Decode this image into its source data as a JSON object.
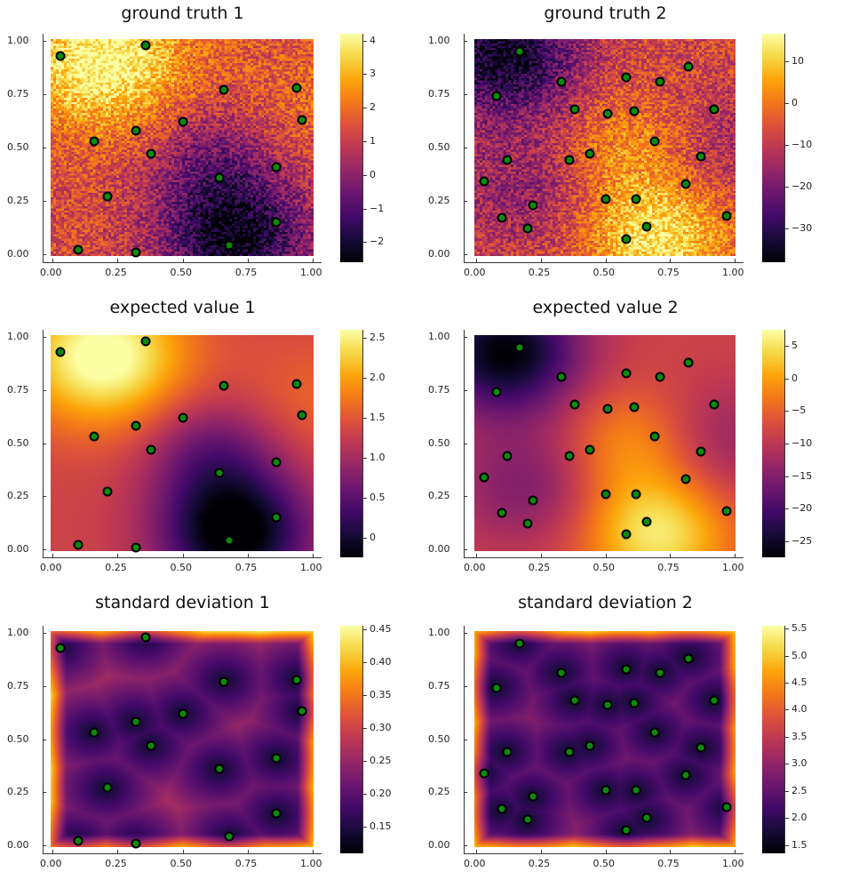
{
  "chart_data": [
    {
      "type": "heatmap",
      "title": "ground truth 1",
      "field": "gt1",
      "xlim": [
        0,
        1
      ],
      "ylim": [
        0,
        1
      ],
      "xticks": [
        "0.00",
        "0.25",
        "0.50",
        "0.75",
        "1.00"
      ],
      "yticks": [
        "0.00",
        "0.25",
        "0.50",
        "0.75",
        "1.00"
      ],
      "clim": [
        -2.6,
        4.2
      ],
      "cticks": [
        -2,
        -1,
        0,
        1,
        2,
        3,
        4
      ],
      "ctick_labels": [
        "−2",
        "−1",
        "0",
        "1",
        "2",
        "3",
        "4"
      ],
      "points": "set1"
    },
    {
      "type": "heatmap",
      "title": "ground truth 2",
      "field": "gt2",
      "xlim": [
        0,
        1
      ],
      "ylim": [
        0,
        1
      ],
      "xticks": [
        "0.00",
        "0.25",
        "0.50",
        "0.75",
        "1.00"
      ],
      "yticks": [
        "0.00",
        "0.25",
        "0.50",
        "0.75",
        "1.00"
      ],
      "clim": [
        -38,
        16.5
      ],
      "cticks": [
        -30,
        -20,
        -10,
        0,
        10
      ],
      "ctick_labels": [
        "−30",
        "−20",
        "−10",
        "0",
        "10"
      ],
      "points": "set2"
    },
    {
      "type": "heatmap",
      "title": "expected value 1",
      "field": "ev1",
      "xlim": [
        0,
        1
      ],
      "ylim": [
        0,
        1
      ],
      "xticks": [
        "0.00",
        "0.25",
        "0.50",
        "0.75",
        "1.00"
      ],
      "yticks": [
        "0.00",
        "0.25",
        "0.50",
        "0.75",
        "1.00"
      ],
      "clim": [
        -0.25,
        2.6
      ],
      "cticks": [
        0,
        0.5,
        1,
        1.5,
        2,
        2.5
      ],
      "ctick_labels": [
        "0",
        "0.5",
        "1.0",
        "1.5",
        "2.0",
        "2.5"
      ],
      "points": "set1"
    },
    {
      "type": "heatmap",
      "title": "expected value 2",
      "field": "ev2",
      "xlim": [
        0,
        1
      ],
      "ylim": [
        0,
        1
      ],
      "xticks": [
        "0.00",
        "0.25",
        "0.50",
        "0.75",
        "1.00"
      ],
      "yticks": [
        "0.00",
        "0.25",
        "0.50",
        "0.75",
        "1.00"
      ],
      "clim": [
        -27.5,
        7.5
      ],
      "cticks": [
        -25,
        -20,
        -15,
        -10,
        -5,
        0,
        5
      ],
      "ctick_labels": [
        "−25",
        "−20",
        "−15",
        "−10",
        "−5",
        "0",
        "5"
      ],
      "points": "set2"
    },
    {
      "type": "heatmap",
      "title": "standard deviation 1",
      "field": "sd1",
      "xlim": [
        0,
        1
      ],
      "ylim": [
        0,
        1
      ],
      "xticks": [
        "0.00",
        "0.25",
        "0.50",
        "0.75",
        "1.00"
      ],
      "yticks": [
        "0.00",
        "0.25",
        "0.50",
        "0.75",
        "1.00"
      ],
      "clim": [
        0.11,
        0.455
      ],
      "cticks": [
        0.15,
        0.2,
        0.25,
        0.3,
        0.35,
        0.4,
        0.45
      ],
      "ctick_labels": [
        "0.15",
        "0.20",
        "0.25",
        "0.30",
        "0.35",
        "0.40",
        "0.45"
      ],
      "points": "set1"
    },
    {
      "type": "heatmap",
      "title": "standard deviation 2",
      "field": "sd2",
      "xlim": [
        0,
        1
      ],
      "ylim": [
        0,
        1
      ],
      "xticks": [
        "0.00",
        "0.25",
        "0.50",
        "0.75",
        "1.00"
      ],
      "yticks": [
        "0.00",
        "0.25",
        "0.50",
        "0.75",
        "1.00"
      ],
      "clim": [
        1.35,
        5.55
      ],
      "cticks": [
        1.5,
        2,
        2.5,
        3,
        3.5,
        4,
        4.5,
        5,
        5.5
      ],
      "ctick_labels": [
        "1.5",
        "2.0",
        "2.5",
        "3.0",
        "3.5",
        "4.0",
        "4.5",
        "5.0",
        "5.5"
      ],
      "points": "set2"
    }
  ],
  "points": {
    "set1": [
      [
        0.03,
        0.93
      ],
      [
        0.36,
        0.98
      ],
      [
        0.66,
        0.77
      ],
      [
        0.94,
        0.78
      ],
      [
        0.96,
        0.63
      ],
      [
        0.5,
        0.62
      ],
      [
        0.32,
        0.58
      ],
      [
        0.16,
        0.53
      ],
      [
        0.38,
        0.47
      ],
      [
        0.86,
        0.41
      ],
      [
        0.64,
        0.36
      ],
      [
        0.21,
        0.27
      ],
      [
        0.86,
        0.15
      ],
      [
        0.68,
        0.04
      ],
      [
        0.1,
        0.02
      ],
      [
        0.32,
        0.01
      ]
    ],
    "set2": [
      [
        0.17,
        0.95
      ],
      [
        0.08,
        0.74
      ],
      [
        0.33,
        0.81
      ],
      [
        0.58,
        0.83
      ],
      [
        0.71,
        0.81
      ],
      [
        0.82,
        0.88
      ],
      [
        0.38,
        0.68
      ],
      [
        0.51,
        0.66
      ],
      [
        0.61,
        0.67
      ],
      [
        0.92,
        0.68
      ],
      [
        0.69,
        0.53
      ],
      [
        0.03,
        0.34
      ],
      [
        0.12,
        0.44
      ],
      [
        0.36,
        0.44
      ],
      [
        0.44,
        0.47
      ],
      [
        0.87,
        0.46
      ],
      [
        0.81,
        0.33
      ],
      [
        0.1,
        0.17
      ],
      [
        0.22,
        0.23
      ],
      [
        0.2,
        0.12
      ],
      [
        0.5,
        0.26
      ],
      [
        0.62,
        0.26
      ],
      [
        0.66,
        0.13
      ],
      [
        0.58,
        0.07
      ],
      [
        0.97,
        0.18
      ]
    ]
  },
  "colormap": [
    "#000004",
    "#160b39",
    "#420a68",
    "#6a176e",
    "#932667",
    "#bc3754",
    "#dd513a",
    "#f37819",
    "#fca50a",
    "#f6d746",
    "#fcffa4"
  ],
  "marker_color": "#0a8a0a"
}
